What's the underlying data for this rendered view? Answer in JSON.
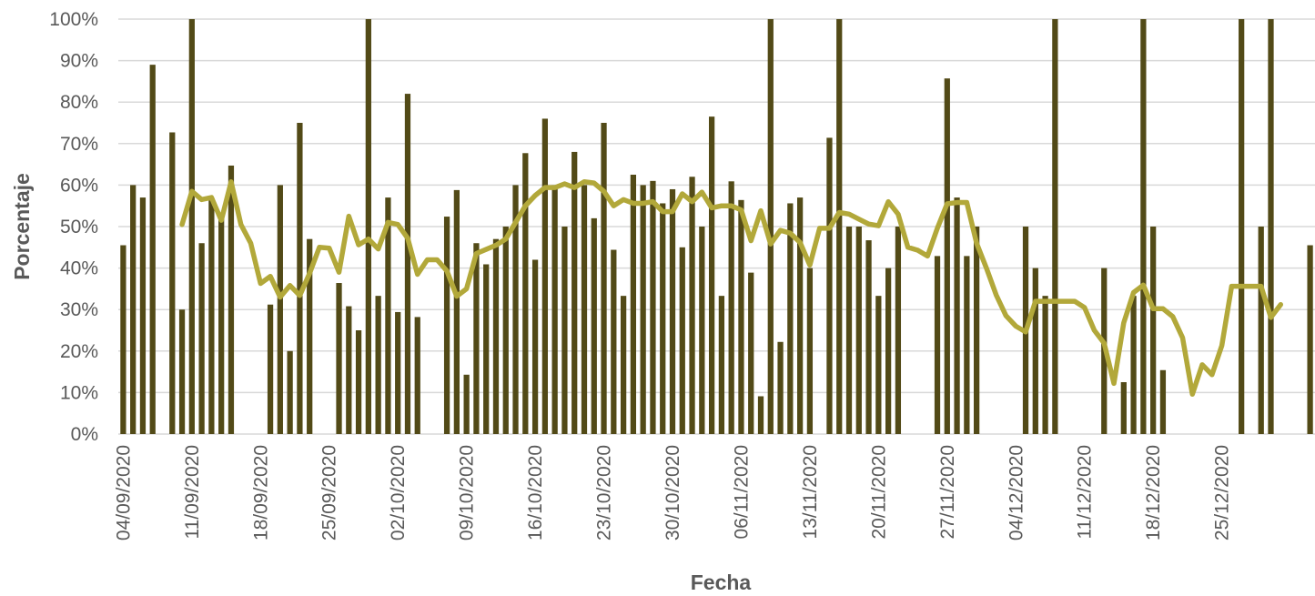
{
  "chart_data": {
    "type": "bar",
    "xlabel": "Fecha",
    "ylabel": "Porcentaje",
    "ylim": [
      0,
      100
    ],
    "yticks": [
      "0%",
      "10%",
      "20%",
      "30%",
      "40%",
      "50%",
      "60%",
      "70%",
      "80%",
      "90%",
      "100%"
    ],
    "xticks": [
      "04/09/2020",
      "11/09/2020",
      "18/09/2020",
      "25/09/2020",
      "02/10/2020",
      "09/10/2020",
      "16/10/2020",
      "23/10/2020",
      "30/10/2020",
      "06/11/2020",
      "13/11/2020",
      "20/11/2020",
      "27/11/2020",
      "04/12/2020",
      "11/12/2020",
      "18/12/2020",
      "25/12/2020"
    ],
    "grid": true,
    "colors": {
      "bars": "#524A17",
      "line": "#B2A83A",
      "grid": "#D9D9D9",
      "text": "#595959"
    },
    "start_date": "04/09/2020",
    "series": [
      {
        "kind": "bar",
        "values": [
          45.5,
          60,
          57,
          89,
          null,
          72.7,
          30,
          100,
          46,
          57,
          52,
          64.7,
          null,
          null,
          null,
          31.2,
          60,
          20,
          75,
          47,
          null,
          null,
          36.4,
          30.8,
          25,
          100,
          33.3,
          57,
          29.4,
          82,
          28.2,
          null,
          null,
          52.4,
          58.8,
          14.3,
          46,
          40.9,
          47,
          50,
          60,
          67.7,
          42,
          76,
          60,
          50,
          68,
          60,
          52,
          75,
          44.4,
          33.3,
          62.5,
          60,
          61,
          55.6,
          59,
          45,
          62,
          50,
          76.5,
          33.3,
          60.9,
          56.4,
          38.9,
          9.1,
          100,
          22.2,
          55.6,
          57,
          40,
          null,
          71.4,
          100,
          50,
          50,
          46.7,
          33.3,
          40,
          50,
          null,
          null,
          null,
          42.9,
          85.7,
          57,
          42.9,
          50,
          null,
          null,
          null,
          null,
          50,
          40,
          33.3,
          100,
          null,
          null,
          null,
          null,
          40,
          null,
          12.5,
          33.3,
          100,
          50,
          15.4,
          null,
          null,
          null,
          null,
          null,
          null,
          null,
          100,
          null,
          50,
          100,
          null,
          null,
          null,
          45.5
        ]
      },
      {
        "kind": "line",
        "values": [
          null,
          null,
          null,
          null,
          null,
          null,
          50.5,
          58.5,
          56.5,
          57,
          51.5,
          60.8,
          50.5,
          46,
          36.3,
          38,
          33,
          35.8,
          33.4,
          38.7,
          45,
          44.8,
          39,
          52.5,
          45.6,
          47,
          44.6,
          51,
          50.5,
          47.2,
          38.5,
          42,
          42,
          39.3,
          33.2,
          35,
          43.5,
          44.5,
          45.5,
          47,
          51,
          55,
          57.5,
          59.4,
          59.4,
          60.3,
          59.4,
          60.8,
          60.5,
          58.5,
          55,
          56.5,
          55.6,
          55.6,
          56,
          53.6,
          53.6,
          57.9,
          56,
          58.3,
          54.5,
          55,
          55,
          54,
          46.6,
          53.8,
          45.8,
          49.1,
          48.4,
          46.2,
          40.7,
          49.6,
          49.6,
          53.4,
          53,
          51.8,
          50.6,
          50.2,
          56,
          53,
          45,
          44.3,
          42.9,
          49.6,
          55.5,
          55.8,
          55.8,
          46,
          40,
          33.5,
          28.5,
          26,
          24.6,
          32,
          32,
          32,
          32,
          32,
          30.5,
          25,
          21.9,
          12.2,
          26.8,
          34.1,
          35.9,
          30.2,
          30.2,
          28.3,
          23.2,
          9.6,
          16.7,
          14.3,
          21.3,
          35.6,
          35.6,
          35.6,
          35.6,
          28.1,
          31.2
        ]
      }
    ]
  }
}
